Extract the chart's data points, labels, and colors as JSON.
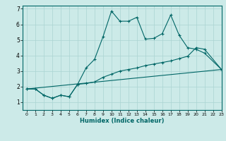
{
  "xlabel": "Humidex (Indice chaleur)",
  "bg_color": "#cceae8",
  "grid_color": "#aad4d2",
  "line_color": "#006666",
  "xlim": [
    -0.5,
    23
  ],
  "ylim": [
    0.5,
    7.2
  ],
  "yticks": [
    1,
    2,
    3,
    4,
    5,
    6,
    7
  ],
  "xticks": [
    0,
    1,
    2,
    3,
    4,
    5,
    6,
    7,
    8,
    9,
    10,
    11,
    12,
    13,
    14,
    15,
    16,
    17,
    18,
    19,
    20,
    21,
    22,
    23
  ],
  "line1_x": [
    0,
    1,
    2,
    3,
    4,
    5,
    6,
    7,
    8,
    9,
    10,
    11,
    12,
    13,
    14,
    15,
    16,
    17,
    18,
    19,
    20,
    21,
    23
  ],
  "line1_y": [
    1.85,
    1.85,
    1.45,
    1.25,
    1.45,
    1.35,
    2.15,
    3.2,
    3.75,
    5.2,
    6.85,
    6.2,
    6.2,
    6.45,
    5.05,
    5.1,
    5.4,
    6.6,
    5.3,
    4.5,
    4.4,
    4.15,
    3.1
  ],
  "line2_x": [
    0,
    1,
    2,
    3,
    4,
    5,
    6,
    7,
    8,
    9,
    10,
    11,
    12,
    13,
    14,
    15,
    16,
    17,
    18,
    19,
    20,
    21,
    23
  ],
  "line2_y": [
    1.85,
    1.85,
    1.45,
    1.25,
    1.45,
    1.35,
    2.15,
    2.2,
    2.3,
    2.6,
    2.8,
    3.0,
    3.1,
    3.2,
    3.35,
    3.45,
    3.55,
    3.65,
    3.8,
    3.95,
    4.5,
    4.4,
    3.1
  ],
  "line3_x": [
    0,
    23
  ],
  "line3_y": [
    1.85,
    3.1
  ]
}
